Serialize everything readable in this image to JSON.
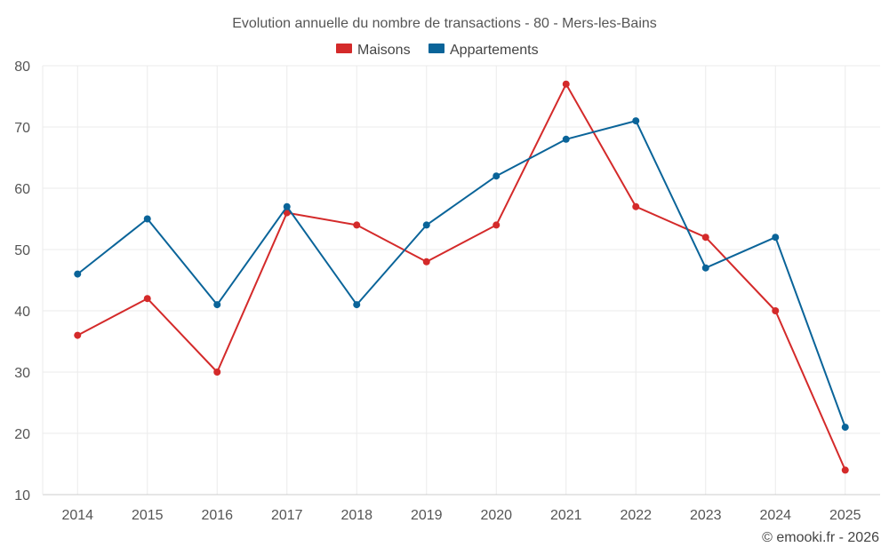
{
  "chart_data": {
    "type": "line",
    "title": "Evolution annuelle du nombre de transactions - 80 - Mers-les-Bains",
    "categories": [
      "2014",
      "2015",
      "2016",
      "2017",
      "2018",
      "2019",
      "2020",
      "2021",
      "2022",
      "2023",
      "2024",
      "2025"
    ],
    "ylim": [
      10,
      80
    ],
    "yticks": [
      "10",
      "20",
      "30",
      "40",
      "50",
      "60",
      "70",
      "80"
    ],
    "grid": true,
    "legend_position": "top-center",
    "series": [
      {
        "name": "Maisons",
        "color": "#d42a2a",
        "values": [
          36,
          42,
          30,
          56,
          54,
          48,
          54,
          77,
          57,
          52,
          40,
          14
        ]
      },
      {
        "name": "Appartements",
        "color": "#0a6499",
        "values": [
          46,
          55,
          41,
          57,
          41,
          54,
          62,
          68,
          71,
          47,
          52,
          21
        ]
      }
    ]
  },
  "credit": "© emooki.fr - 2026"
}
